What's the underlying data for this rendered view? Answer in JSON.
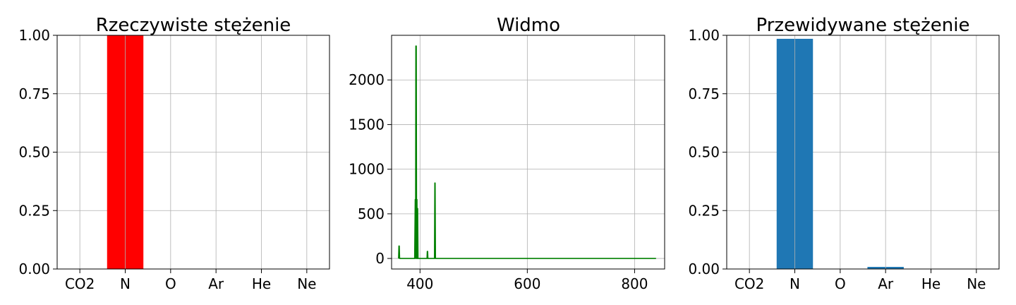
{
  "chart_data": [
    {
      "type": "bar",
      "title": "Rzeczywiste stężenie",
      "categories": [
        "CO2",
        "N",
        "O",
        "Ar",
        "He",
        "Ne"
      ],
      "values": [
        0,
        1.0,
        0,
        0,
        0,
        0
      ],
      "bar_color": "#ff0000",
      "ylim": [
        0,
        1.0
      ],
      "yticks": [
        0.0,
        0.25,
        0.5,
        0.75,
        1.0
      ],
      "ytick_labels": [
        "0.00",
        "0.25",
        "0.50",
        "0.75",
        "1.00"
      ],
      "grid": true
    },
    {
      "type": "line",
      "title": "Widmo",
      "line_color": "#008000",
      "xlim": [
        347,
        856
      ],
      "ylim": [
        -118,
        2500
      ],
      "xticks": [
        400,
        600,
        800
      ],
      "xtick_labels": [
        "400",
        "600",
        "800"
      ],
      "yticks": [
        0,
        500,
        1000,
        1500,
        2000
      ],
      "ytick_labels": [
        "0",
        "500",
        "1000",
        "1500",
        "2000"
      ],
      "grid": true,
      "series": [
        {
          "x": [
            360,
            360.7,
            361.4,
            362,
            390,
            391,
            391.7,
            392.3,
            393,
            393.7,
            394.3,
            395,
            395.7,
            396.3,
            397,
            413,
            413.6,
            414.2,
            414.8,
            427,
            427.6,
            428.2,
            428.8,
            840
          ],
          "y": [
            0,
            140,
            140,
            0,
            0,
            660,
            0,
            2380,
            2380,
            0,
            660,
            0,
            560,
            0,
            0,
            0,
            80,
            80,
            0,
            0,
            845,
            845,
            0,
            0
          ]
        }
      ]
    },
    {
      "type": "bar",
      "title": "Przewidywane stężenie",
      "categories": [
        "CO2",
        "N",
        "O",
        "Ar",
        "He",
        "Ne"
      ],
      "values": [
        0,
        0.985,
        0,
        0.009,
        0,
        0
      ],
      "bar_color": "#1f77b4",
      "ylim": [
        0,
        1.0
      ],
      "yticks": [
        0.0,
        0.25,
        0.5,
        0.75,
        1.0
      ],
      "ytick_labels": [
        "0.00",
        "0.25",
        "0.50",
        "0.75",
        "1.00"
      ],
      "grid": true
    }
  ]
}
